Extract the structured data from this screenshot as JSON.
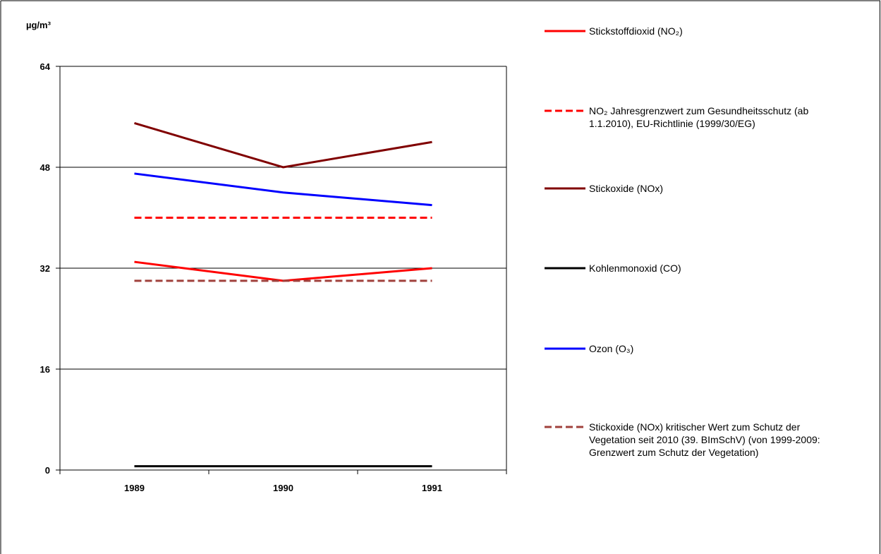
{
  "chart_data": {
    "type": "line",
    "y_unit": "µg/m³",
    "categories": [
      "1989",
      "1990",
      "1991"
    ],
    "ylim": [
      0,
      64
    ],
    "yticks": [
      "0",
      "16",
      "32",
      "48",
      "64"
    ],
    "grid": "horizontal",
    "legend_position": "right",
    "series": [
      {
        "name": "Stickstoffdioxid (NO₂)",
        "values": [
          33,
          30,
          32
        ],
        "color": "#ff0000",
        "dash": "solid"
      },
      {
        "name": "NO₂ Jahresgrenzwert  zum Gesundheitsschutz (ab 1.1.2010), EU-Richtlinie (1999/30/EG)",
        "values": [
          40,
          40,
          40
        ],
        "color": "#ff0000",
        "dash": "dashed"
      },
      {
        "name": "Stickoxide (NOx)",
        "values": [
          55,
          48,
          52
        ],
        "color": "#800000",
        "dash": "solid"
      },
      {
        "name": "Kohlenmonoxid (CO)",
        "values": [
          0.6,
          0.6,
          0.6
        ],
        "color": "#000000",
        "dash": "solid"
      },
      {
        "name": "Ozon (O₃)",
        "values": [
          47,
          44,
          42
        ],
        "color": "#0000ff",
        "dash": "solid"
      },
      {
        "name": "Stickoxide (NOx) kritischer Wert zum Schutz der Vegetation seit 2010 (39. BImSchV) (von 1999-2009: Grenzwert zum Schutz der Vegetation)",
        "values": [
          30,
          30,
          30
        ],
        "color": "#a0403c",
        "dash": "dashed"
      }
    ]
  }
}
